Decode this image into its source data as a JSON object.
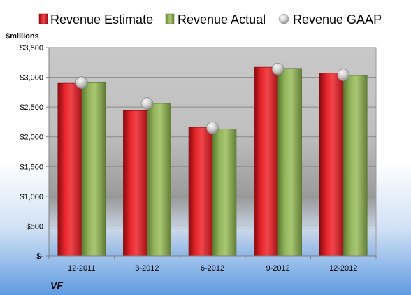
{
  "chart_data": {
    "type": "bar",
    "company": "VF",
    "ylabel": "$millions",
    "categories": [
      "12-2011",
      "3-2012",
      "6-2012",
      "9-2012",
      "12-2012"
    ],
    "series": [
      {
        "name": "Revenue Estimate",
        "type": "bar",
        "color": "#e01c24",
        "values": [
          2900,
          2440,
          2160,
          3170,
          3070
        ]
      },
      {
        "name": "Revenue Actual",
        "type": "bar",
        "color": "#8fb35a",
        "values": [
          2910,
          2560,
          2130,
          3150,
          3030
        ]
      },
      {
        "name": "Revenue GAAP",
        "type": "marker",
        "color": "#c0c0c0",
        "values": [
          2910,
          2560,
          2150,
          3140,
          3040
        ]
      }
    ],
    "ylim": [
      0,
      3500
    ],
    "yticks": [
      {
        "value": 0,
        "label": "$-"
      },
      {
        "value": 500,
        "label": "$500"
      },
      {
        "value": 1000,
        "label": "$1,000"
      },
      {
        "value": 1500,
        "label": "$1,500"
      },
      {
        "value": 2000,
        "label": "$2,000"
      },
      {
        "value": 2500,
        "label": "$2,500"
      },
      {
        "value": 3000,
        "label": "$3,000"
      },
      {
        "value": 3500,
        "label": "$3,500"
      }
    ],
    "grid": true,
    "legend_position": "top"
  }
}
